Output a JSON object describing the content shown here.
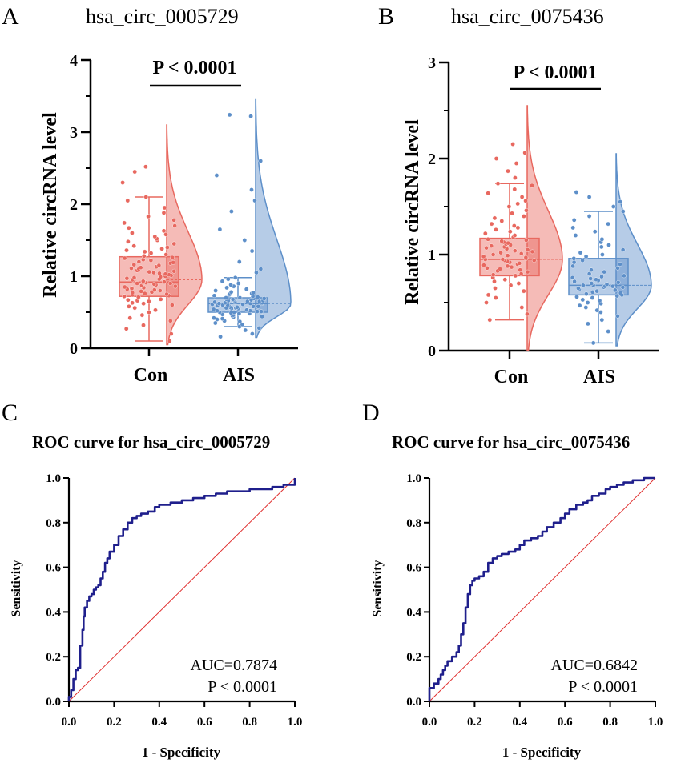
{
  "colors": {
    "con": "#e8685f",
    "ais": "#5d8fc9",
    "roc_curve": "#1f1f8c",
    "diagonal": "#e03030",
    "axis": "#000000"
  },
  "chart_data": [
    {
      "panel": "A",
      "type": "box-violin-scatter",
      "title": "hsa_circ_0005729",
      "ylabel": "Relative circRNA level",
      "ylim": [
        0,
        4
      ],
      "yticks": [
        "0",
        "1",
        "2",
        "3",
        "4"
      ],
      "categories": [
        "Con",
        "AIS"
      ],
      "significance": "P < 0.0001",
      "series": [
        {
          "category": "Con",
          "color": "#e8685f",
          "box": {
            "min": 0.1,
            "q1": 0.72,
            "median": 0.92,
            "q3": 1.27,
            "max": 2.1
          },
          "points": [
            0.1,
            0.2,
            0.27,
            0.32,
            0.38,
            0.42,
            0.46,
            0.5,
            0.53,
            0.56,
            0.58,
            0.6,
            0.62,
            0.63,
            0.65,
            0.66,
            0.67,
            0.68,
            0.7,
            0.71,
            0.72,
            0.73,
            0.74,
            0.75,
            0.76,
            0.77,
            0.78,
            0.79,
            0.8,
            0.81,
            0.82,
            0.83,
            0.84,
            0.85,
            0.86,
            0.87,
            0.88,
            0.89,
            0.9,
            0.9,
            0.91,
            0.91,
            0.92,
            0.92,
            0.93,
            0.93,
            0.94,
            0.95,
            0.96,
            0.97,
            0.98,
            0.99,
            1.0,
            1.01,
            1.02,
            1.03,
            1.04,
            1.05,
            1.06,
            1.07,
            1.08,
            1.1,
            1.11,
            1.12,
            1.13,
            1.15,
            1.16,
            1.18,
            1.19,
            1.2,
            1.22,
            1.23,
            1.25,
            1.26,
            1.28,
            1.3,
            1.32,
            1.34,
            1.36,
            1.38,
            1.4,
            1.42,
            1.45,
            1.48,
            1.5,
            1.52,
            1.55,
            1.58,
            1.6,
            1.63,
            1.67,
            1.7,
            1.74,
            1.78,
            1.83,
            1.88,
            1.95,
            2.05,
            2.1,
            2.3,
            2.45,
            2.52
          ],
          "violin_range": [
            0.05,
            3.1
          ],
          "violin_peak": 0.95
        },
        {
          "category": "AIS",
          "color": "#5d8fc9",
          "box": {
            "min": 0.3,
            "q1": 0.5,
            "median": 0.62,
            "q3": 0.7,
            "max": 0.98
          },
          "points": [
            0.16,
            0.2,
            0.25,
            0.28,
            0.3,
            0.33,
            0.35,
            0.37,
            0.38,
            0.4,
            0.41,
            0.42,
            0.43,
            0.44,
            0.45,
            0.46,
            0.47,
            0.48,
            0.48,
            0.49,
            0.5,
            0.5,
            0.51,
            0.51,
            0.52,
            0.52,
            0.53,
            0.53,
            0.54,
            0.54,
            0.55,
            0.55,
            0.56,
            0.56,
            0.57,
            0.57,
            0.58,
            0.58,
            0.59,
            0.59,
            0.6,
            0.6,
            0.6,
            0.61,
            0.61,
            0.62,
            0.62,
            0.62,
            0.63,
            0.63,
            0.64,
            0.64,
            0.65,
            0.65,
            0.66,
            0.66,
            0.67,
            0.67,
            0.68,
            0.68,
            0.69,
            0.69,
            0.7,
            0.7,
            0.71,
            0.72,
            0.73,
            0.74,
            0.75,
            0.76,
            0.77,
            0.78,
            0.8,
            0.82,
            0.84,
            0.86,
            0.88,
            0.9,
            0.93,
            0.96,
            0.98,
            1.05,
            1.1,
            1.2,
            1.35,
            1.5,
            1.65,
            1.9,
            2.05,
            2.2,
            2.4,
            2.6,
            3.22,
            3.24
          ],
          "violin_range": [
            0.15,
            3.45
          ],
          "violin_peak": 0.62
        }
      ]
    },
    {
      "panel": "B",
      "type": "box-violin-scatter",
      "title": "hsa_circ_0075436",
      "ylabel": "Relative circRNA level",
      "ylim": [
        0,
        3
      ],
      "yticks": [
        "0",
        "1",
        "2",
        "3"
      ],
      "categories": [
        "Con",
        "AIS"
      ],
      "significance": "P < 0.0001",
      "series": [
        {
          "category": "Con",
          "color": "#e8685f",
          "box": {
            "min": 0.32,
            "q1": 0.78,
            "median": 0.95,
            "q3": 1.17,
            "max": 1.74
          },
          "points": [
            0.32,
            0.38,
            0.45,
            0.5,
            0.55,
            0.58,
            0.62,
            0.65,
            0.68,
            0.7,
            0.72,
            0.74,
            0.76,
            0.78,
            0.79,
            0.8,
            0.82,
            0.83,
            0.84,
            0.85,
            0.86,
            0.87,
            0.88,
            0.89,
            0.9,
            0.91,
            0.92,
            0.93,
            0.94,
            0.94,
            0.95,
            0.95,
            0.96,
            0.97,
            0.98,
            0.99,
            1.0,
            1.01,
            1.02,
            1.03,
            1.04,
            1.05,
            1.06,
            1.07,
            1.08,
            1.09,
            1.1,
            1.11,
            1.12,
            1.13,
            1.14,
            1.15,
            1.16,
            1.18,
            1.2,
            1.22,
            1.24,
            1.26,
            1.28,
            1.3,
            1.32,
            1.35,
            1.38,
            1.4,
            1.43,
            1.46,
            1.5,
            1.53,
            1.56,
            1.6,
            1.64,
            1.68,
            1.72,
            1.74,
            1.8,
            1.87,
            1.95,
            2.0,
            2.06,
            2.15
          ],
          "violin_range": [
            0.0,
            2.55
          ],
          "violin_peak": 0.95
        },
        {
          "category": "AIS",
          "color": "#5d8fc9",
          "box": {
            "min": 0.08,
            "q1": 0.58,
            "median": 0.68,
            "q3": 0.96,
            "max": 1.45
          },
          "points": [
            0.08,
            0.2,
            0.28,
            0.32,
            0.36,
            0.4,
            0.42,
            0.45,
            0.47,
            0.49,
            0.5,
            0.52,
            0.53,
            0.55,
            0.56,
            0.57,
            0.58,
            0.59,
            0.6,
            0.61,
            0.62,
            0.63,
            0.64,
            0.65,
            0.66,
            0.66,
            0.67,
            0.67,
            0.68,
            0.68,
            0.69,
            0.7,
            0.71,
            0.72,
            0.73,
            0.74,
            0.75,
            0.76,
            0.77,
            0.78,
            0.8,
            0.82,
            0.84,
            0.86,
            0.88,
            0.9,
            0.92,
            0.94,
            0.96,
            0.98,
            1.0,
            1.02,
            1.05,
            1.08,
            1.1,
            1.13,
            1.16,
            1.2,
            1.24,
            1.28,
            1.32,
            1.36,
            1.4,
            1.45,
            1.5,
            1.55,
            1.6,
            1.65
          ],
          "violin_range": [
            0.05,
            2.05
          ],
          "violin_peak": 0.68
        }
      ]
    },
    {
      "panel": "C",
      "type": "line",
      "title": "ROC curve for hsa_circ_0005729",
      "xlabel": "1 - Specificity",
      "ylabel": "Sensitivity",
      "xlim": [
        0,
        1
      ],
      "ylim": [
        0,
        1
      ],
      "xticks": [
        "0.0",
        "0.2",
        "0.4",
        "0.6",
        "0.8",
        "1.0"
      ],
      "yticks": [
        "0.0",
        "0.2",
        "0.4",
        "0.6",
        "0.8",
        "1.0"
      ],
      "annotations": [
        "AUC=0.7874",
        "P < 0.0001"
      ],
      "series": [
        {
          "x": [
            0,
            0,
            0.01,
            0.01,
            0.02,
            0.02,
            0.03,
            0.03,
            0.04,
            0.04,
            0.05,
            0.05,
            0.06,
            0.06,
            0.065,
            0.065,
            0.07,
            0.07,
            0.08,
            0.08,
            0.09,
            0.1,
            0.11,
            0.12,
            0.13,
            0.14,
            0.15,
            0.16,
            0.17,
            0.18,
            0.2,
            0.22,
            0.24,
            0.26,
            0.28,
            0.3,
            0.32,
            0.35,
            0.38,
            0.4,
            0.45,
            0.5,
            0.55,
            0.6,
            0.65,
            0.7,
            0.75,
            0.8,
            0.85,
            0.9,
            0.95,
            0.98,
            1.0
          ],
          "y": [
            0,
            0.02,
            0.02,
            0.05,
            0.05,
            0.1,
            0.1,
            0.14,
            0.14,
            0.15,
            0.15,
            0.25,
            0.25,
            0.32,
            0.32,
            0.38,
            0.38,
            0.42,
            0.42,
            0.45,
            0.47,
            0.48,
            0.5,
            0.51,
            0.52,
            0.55,
            0.58,
            0.62,
            0.64,
            0.67,
            0.7,
            0.74,
            0.77,
            0.8,
            0.82,
            0.83,
            0.84,
            0.85,
            0.87,
            0.88,
            0.89,
            0.9,
            0.91,
            0.92,
            0.93,
            0.94,
            0.94,
            0.95,
            0.95,
            0.96,
            0.97,
            0.97,
            1.0
          ]
        },
        {
          "x": [
            0,
            1
          ],
          "y": [
            0,
            1
          ]
        }
      ]
    },
    {
      "panel": "D",
      "type": "line",
      "title": "ROC curve for hsa_circ_0075436",
      "xlabel": "1 - Specificity",
      "ylabel": "Sensitivity",
      "xlim": [
        0,
        1
      ],
      "ylim": [
        0,
        1
      ],
      "xticks": [
        "0.0",
        "0.2",
        "0.4",
        "0.6",
        "0.8",
        "1.0"
      ],
      "yticks": [
        "0.0",
        "0.2",
        "0.4",
        "0.6",
        "0.8",
        "1.0"
      ],
      "annotations": [
        "AUC=0.6842",
        "P < 0.0001"
      ],
      "series": [
        {
          "x": [
            0,
            0,
            0.02,
            0.02,
            0.04,
            0.05,
            0.06,
            0.07,
            0.08,
            0.1,
            0.12,
            0.13,
            0.14,
            0.15,
            0.16,
            0.17,
            0.18,
            0.19,
            0.2,
            0.22,
            0.24,
            0.26,
            0.28,
            0.3,
            0.32,
            0.35,
            0.38,
            0.4,
            0.42,
            0.45,
            0.48,
            0.5,
            0.52,
            0.55,
            0.58,
            0.6,
            0.62,
            0.65,
            0.68,
            0.7,
            0.72,
            0.75,
            0.78,
            0.8,
            0.83,
            0.86,
            0.9,
            0.95,
            1.0
          ],
          "y": [
            0,
            0.06,
            0.06,
            0.08,
            0.1,
            0.12,
            0.14,
            0.16,
            0.18,
            0.2,
            0.22,
            0.25,
            0.3,
            0.35,
            0.42,
            0.48,
            0.52,
            0.54,
            0.55,
            0.56,
            0.58,
            0.62,
            0.64,
            0.65,
            0.66,
            0.67,
            0.68,
            0.7,
            0.72,
            0.73,
            0.74,
            0.76,
            0.78,
            0.8,
            0.82,
            0.84,
            0.86,
            0.88,
            0.89,
            0.9,
            0.92,
            0.93,
            0.95,
            0.96,
            0.97,
            0.98,
            0.99,
            1.0,
            1.0
          ]
        },
        {
          "x": [
            0,
            1
          ],
          "y": [
            0,
            1
          ]
        }
      ]
    }
  ]
}
